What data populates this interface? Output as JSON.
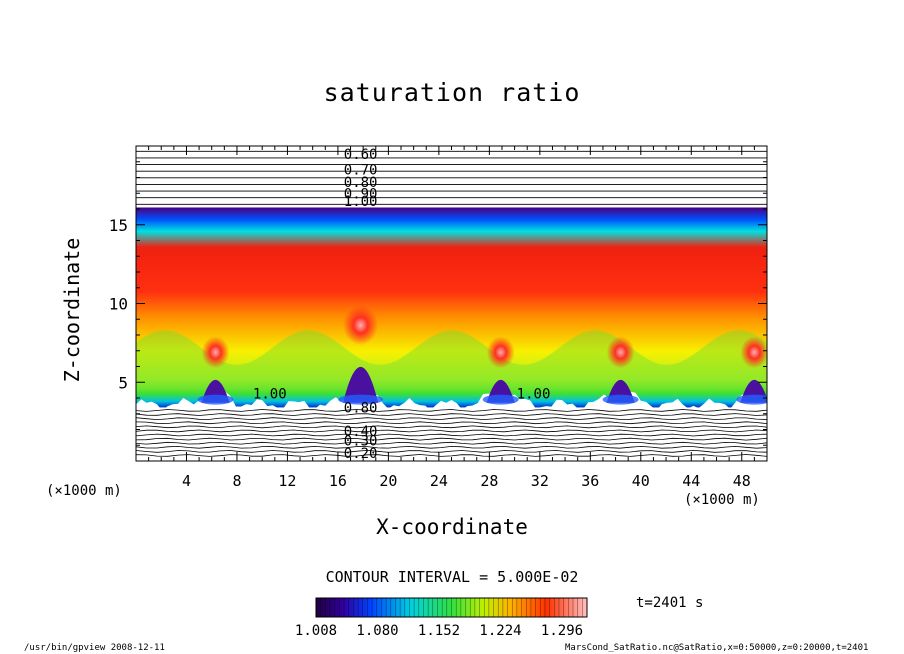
{
  "chart_data": {
    "type": "heatmap",
    "title": "saturation ratio",
    "xlabel": "X-coordinate",
    "ylabel": "Z-coordinate",
    "x_unit_label": "(×1000 m)",
    "xlim": [
      0,
      50
    ],
    "ylim": [
      0,
      20
    ],
    "x_ticks": [
      4,
      8,
      12,
      16,
      20,
      24,
      28,
      32,
      36,
      40,
      44,
      48
    ],
    "y_ticks": [
      5,
      10,
      15
    ],
    "contour_labels_upper": [
      "0.60",
      "0.70",
      "0.80",
      "0.90",
      "1.00"
    ],
    "contour_labels_lower": [
      "0.80",
      "0.40",
      "0.30",
      "0.20"
    ],
    "contour_label_mid": "1.00",
    "contour_interval_label": "CONTOUR INTERVAL = 5.000E-02",
    "colorbar": {
      "min": 1.008,
      "max": 1.296,
      "tick_labels": [
        "1.008",
        "1.080",
        "1.152",
        "1.224",
        "1.296"
      ]
    },
    "time_label": "t=2401 s",
    "plumes_x": [
      6.3,
      17.8,
      28.9,
      38.4,
      49.0
    ],
    "colors": {
      "dark_violet": "#4a0080",
      "blue": "#0050ff",
      "cyan": "#00e0e0",
      "green": "#40e030",
      "yellow": "#f8f000",
      "orange": "#ff9000",
      "red": "#f02010"
    }
  },
  "footer": {
    "left": "/usr/bin/gpview  2008-12-11",
    "right": "MarsCond_SatRatio.nc@SatRatio,x=0:50000,z=0:20000,t=2401"
  }
}
